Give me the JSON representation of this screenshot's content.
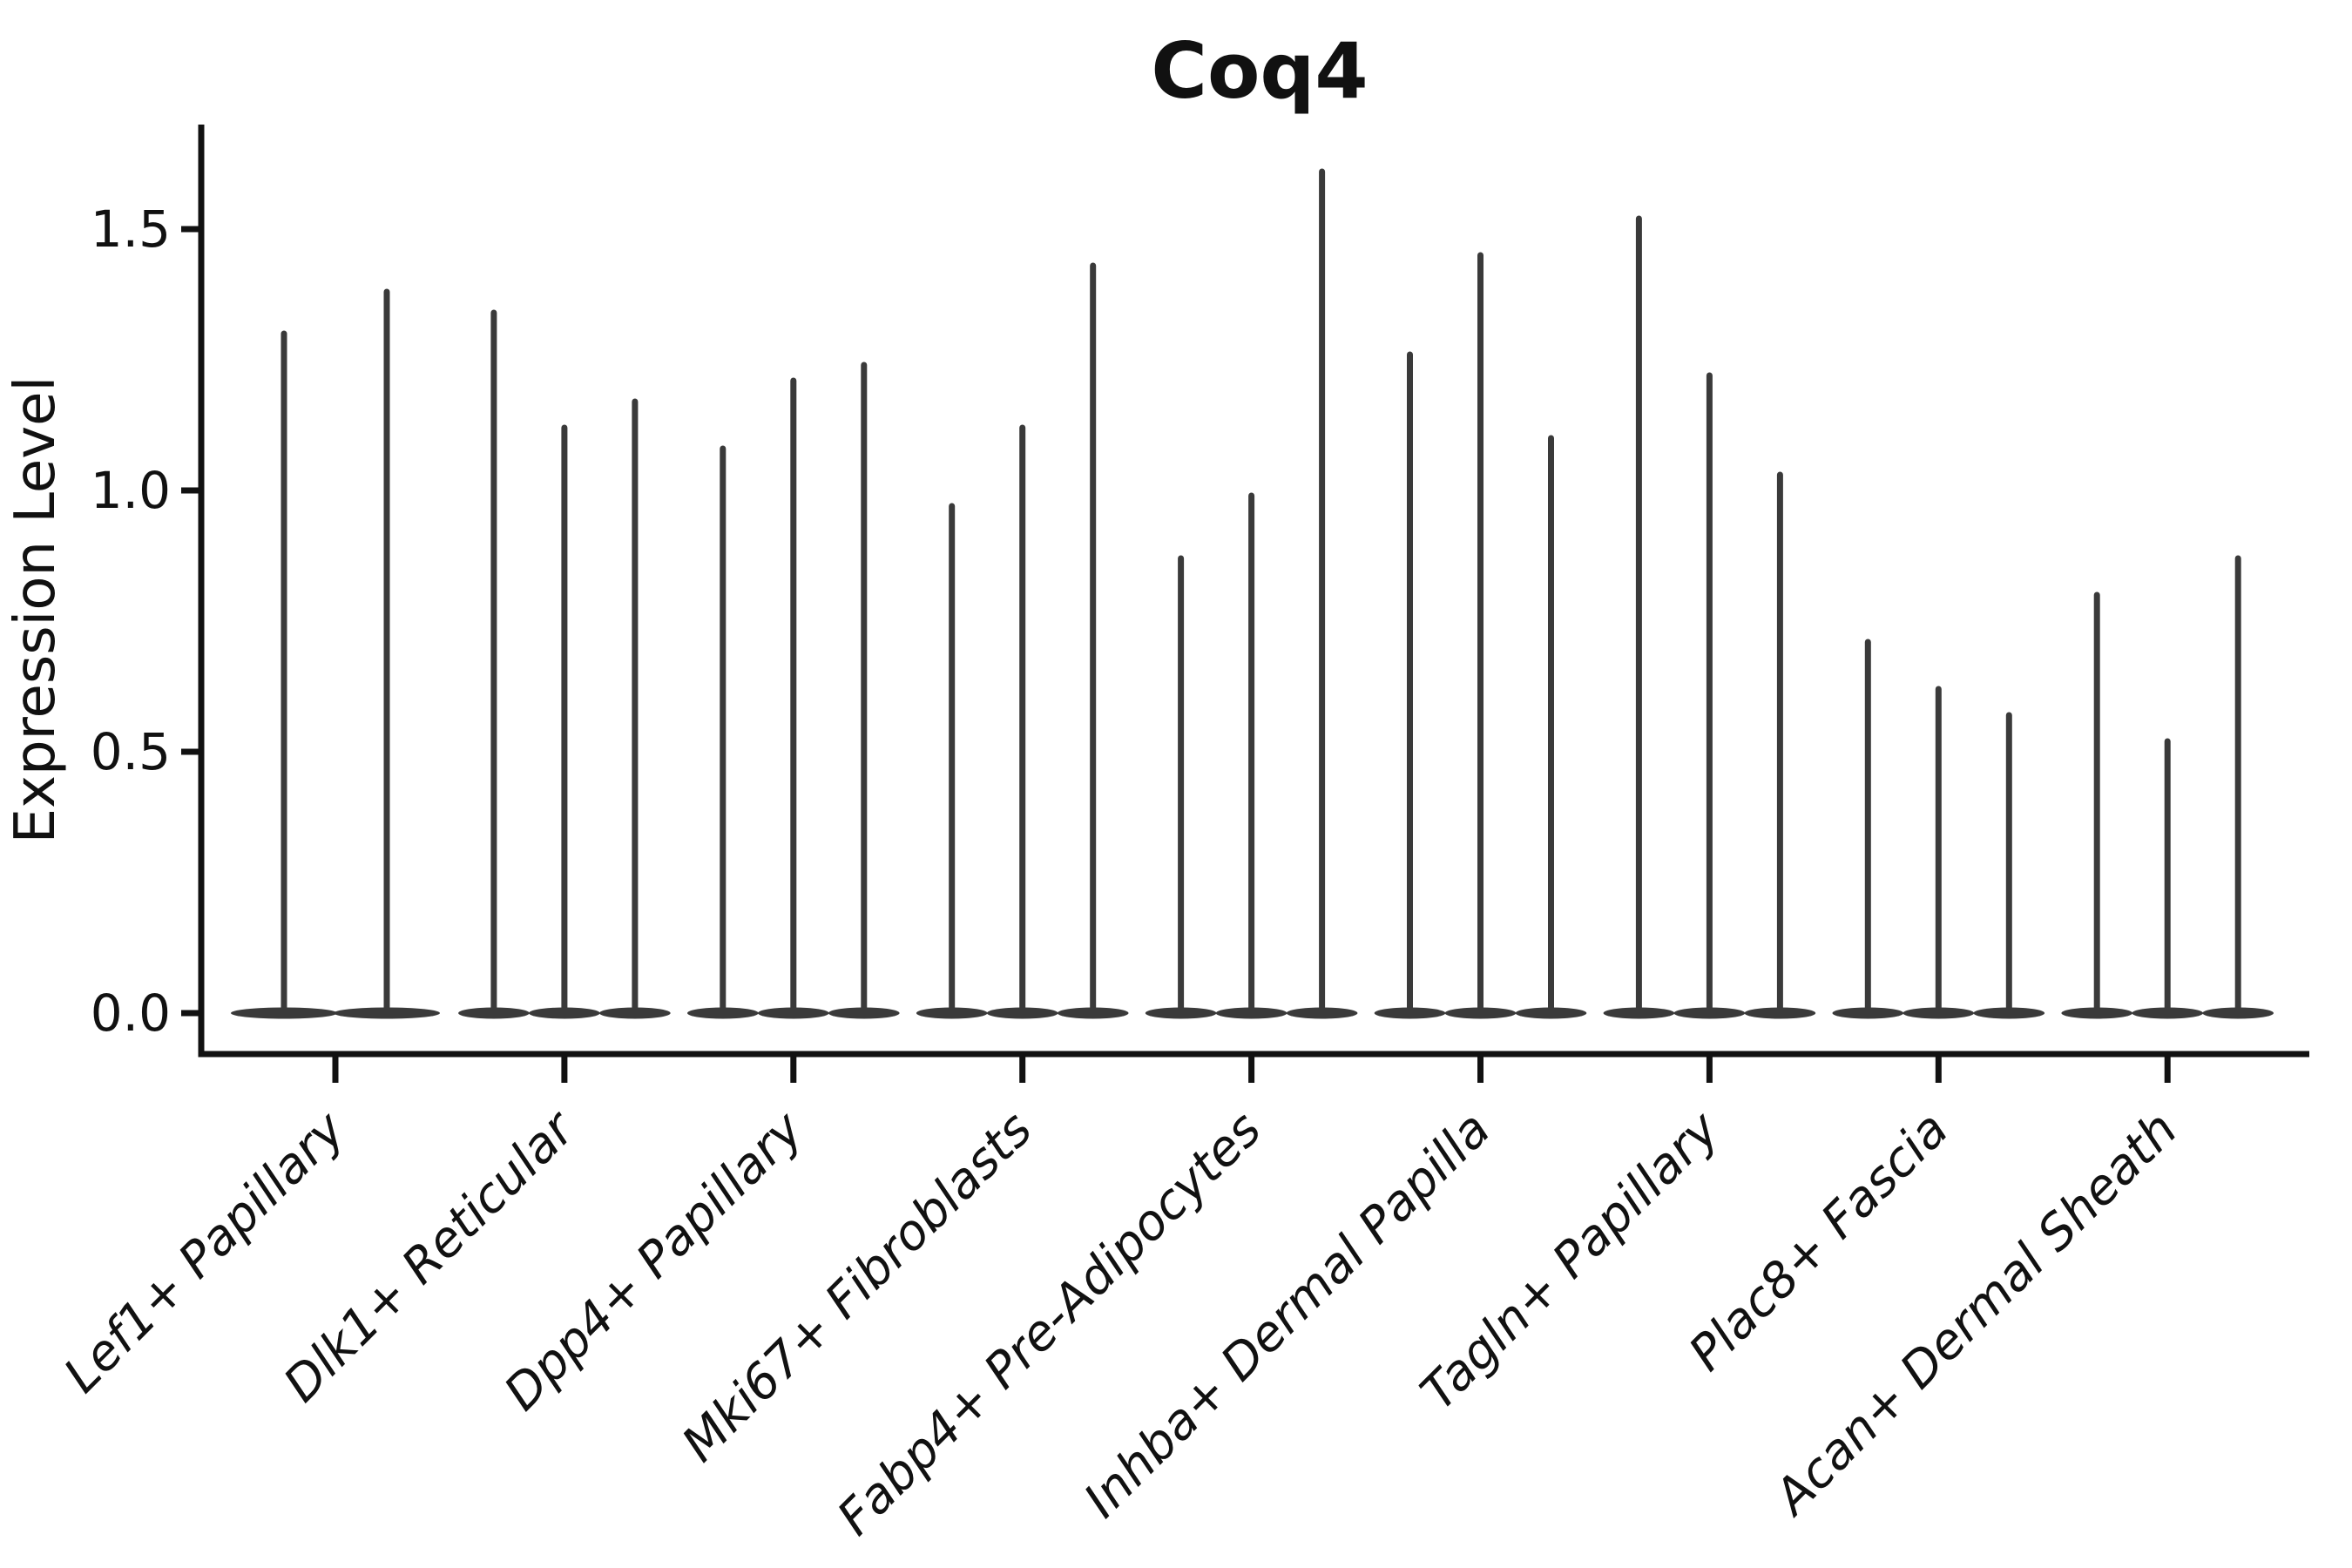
{
  "figure": {
    "title": "Coq4",
    "ylabel": "Expression Level"
  },
  "chart_data": {
    "type": "violin",
    "title": "Coq4",
    "xlabel": "",
    "ylabel": "Expression Level",
    "ylim": [
      -0.08,
      1.7
    ],
    "yticks": [
      0.0,
      0.5,
      1.0,
      1.5
    ],
    "ytick_labels": [
      "0.0",
      "0.5",
      "1.0",
      "1.5"
    ],
    "grid": false,
    "legend_position": "none",
    "x_tick_rotation_deg": 45,
    "x_tick_alignment": "right",
    "violin_shape": "mass-concentrated-at-zero-with-thin-tail-to-max",
    "baseline_value": 0.0,
    "categories": [
      "Lef1+ Papillary",
      "Dlk1+ Reticular",
      "Dpp4+ Papillary",
      "Mki67+ Fibroblasts",
      "Fabp4+ Pre-Adipocytes",
      "Inhba+ Dermal Papilla",
      "Tagln+ Papillary",
      "Plac8+ Fascia",
      "Acan+ Dermal Sheath"
    ],
    "groups": [
      {
        "category": "Lef1+ Papillary",
        "violin_max_values": [
          1.3,
          1.38
        ]
      },
      {
        "category": "Dlk1+ Reticular",
        "violin_max_values": [
          1.34,
          1.12,
          1.17
        ]
      },
      {
        "category": "Dpp4+ Papillary",
        "violin_max_values": [
          1.08,
          1.21,
          1.24
        ]
      },
      {
        "category": "Mki67+ Fibroblasts",
        "violin_max_values": [
          0.97,
          1.12,
          1.43
        ]
      },
      {
        "category": "Fabp4+ Pre-Adipocytes",
        "violin_max_values": [
          0.87,
          0.99,
          1.61
        ]
      },
      {
        "category": "Inhba+ Dermal Papilla",
        "violin_max_values": [
          1.26,
          1.45,
          1.1
        ]
      },
      {
        "category": "Tagln+ Papillary",
        "violin_max_values": [
          1.52,
          1.22,
          1.03
        ]
      },
      {
        "category": "Plac8+ Fascia",
        "violin_max_values": [
          0.71,
          0.62,
          0.57
        ]
      },
      {
        "category": "Acan+ Dermal Sheath",
        "violin_max_values": [
          0.8,
          0.52,
          0.87
        ]
      }
    ],
    "colors": {
      "ink": "#111111",
      "violin": "#3a3a3a",
      "background": "#ffffff"
    }
  }
}
